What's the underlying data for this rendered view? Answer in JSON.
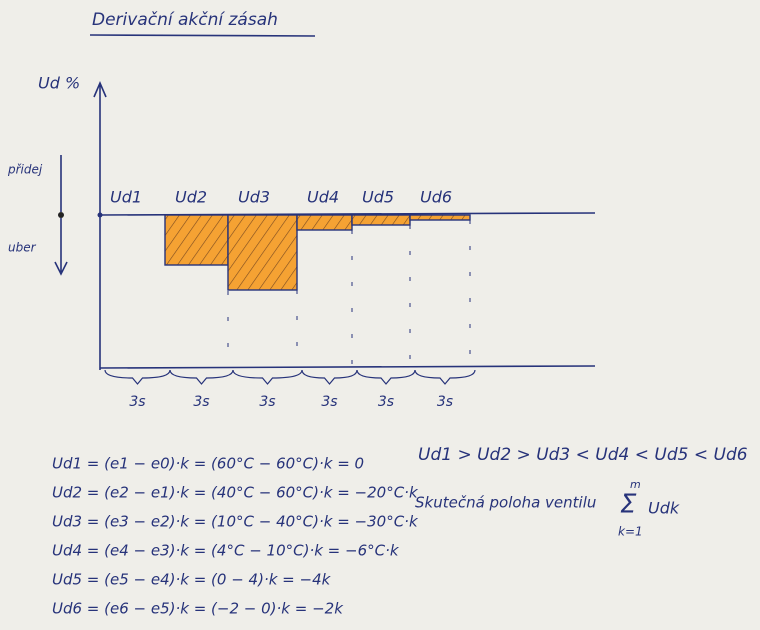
{
  "title": "Derivační akční zásah",
  "axis": {
    "y_label": "Ud %",
    "up_label": "přidej",
    "down_label": "uber"
  },
  "bars": [
    {
      "label": "Ud1",
      "value": 0
    },
    {
      "label": "Ud2",
      "value": -20
    },
    {
      "label": "Ud3",
      "value": -30
    },
    {
      "label": "Ud4",
      "value": -6
    },
    {
      "label": "Ud5",
      "value": -4
    },
    {
      "label": "Ud6",
      "value": -2
    }
  ],
  "time_labels": [
    "3s",
    "3s",
    "3s",
    "3s",
    "3s",
    "3s"
  ],
  "equations": [
    "Ud1 = (e1 − e0)·k = (60°C − 60°C)·k = 0",
    "Ud2 = (e2 − e1)·k = (40°C − 60°C)·k = −20°C·k",
    "Ud3 = (e3 − e2)·k = (10°C − 40°C)·k = −30°C·k",
    "Ud4 = (e4 − e3)·k = (4°C − 10°C)·k = −6°C·k",
    "Ud5 = (e5 − e4)·k = (0 − 4)·k = −4k",
    "Ud6 = (e6 − e5)·k = (−2 − 0)·k = −2k"
  ],
  "comparison": "Ud1 > Ud2 > Ud3 < Ud4 < Ud5 < Ud6",
  "valve_label": "Skutečná poloha ventilu",
  "sum": {
    "symbol": "Σ",
    "top": "m",
    "term": "Udk",
    "bottom": "k=1"
  }
}
